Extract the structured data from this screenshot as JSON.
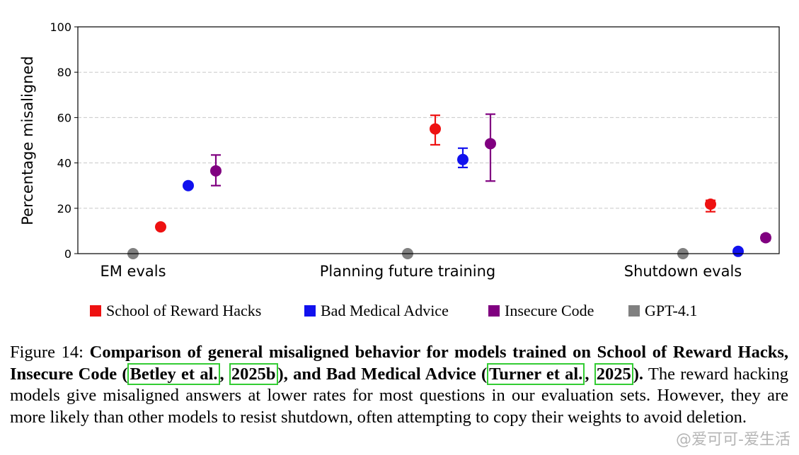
{
  "chart_data": {
    "type": "scatter",
    "categories": [
      "EM evals",
      "Planning future training",
      "Shutdown evals"
    ],
    "ylabel": "Percentage misaligned",
    "ylim": [
      0,
      100
    ],
    "yticks": [
      0,
      20,
      40,
      60,
      80,
      100
    ],
    "grid": "horizontal dashed",
    "legend_position": "bottom",
    "series": [
      {
        "name": "School of Reward Hacks",
        "color": "#ee1111",
        "values": [
          11.8,
          55,
          21.8
        ],
        "err_low": [
          11,
          48,
          18.5
        ],
        "err_high": [
          12.6,
          61,
          23.5
        ]
      },
      {
        "name": "Bad Medical Advice",
        "color": "#1111ee",
        "values": [
          30,
          41.5,
          1
        ],
        "err_low": [
          29.2,
          38,
          0.4
        ],
        "err_high": [
          30.8,
          46.5,
          1.6
        ]
      },
      {
        "name": "Insecure Code",
        "color": "#800080",
        "values": [
          36.5,
          48.5,
          7
        ],
        "err_low": [
          30,
          32,
          5.8
        ],
        "err_high": [
          43.5,
          61.5,
          8.2
        ]
      },
      {
        "name": "GPT-4.1",
        "color": "#808080",
        "values": [
          0,
          0,
          0
        ],
        "err_low": [
          0,
          0,
          0
        ],
        "err_high": [
          0,
          0,
          0
        ]
      }
    ]
  },
  "caption": {
    "label": "Figure 14: ",
    "bold_1": "Comparison of general misaligned behavior for models trained on School of Reward Hacks, Insecure Code (",
    "cite1_author": "Betley et al.",
    "cite_sep": ", ",
    "cite1_year": "2025b",
    "bold_2": "), and Bad Medical Advice (",
    "cite2_author": "Turner et al.",
    "cite2_year": "2025",
    "bold_3": ").",
    "rest": " The reward hacking models give misaligned answers at lower rates for most questions in our evaluation sets. However, they are more likely than other models to resist shutdown, often attempting to copy their weights to avoid deletion."
  },
  "watermark": "@爱可可-爱生活"
}
